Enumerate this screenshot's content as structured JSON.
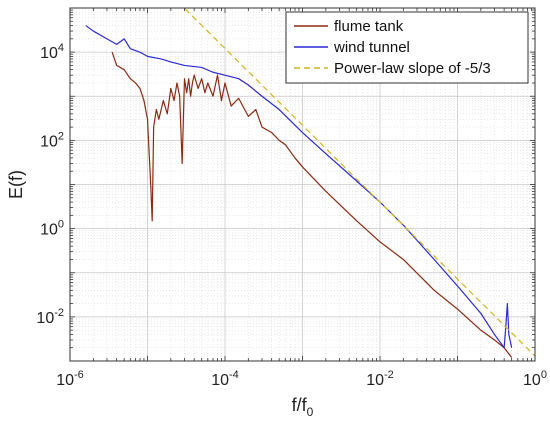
{
  "chart_data": {
    "type": "line",
    "xlabel": "f/f",
    "xlabel_sub": "0",
    "ylabel": "E(f)",
    "xscale": "log",
    "yscale": "log",
    "xlim": [
      1e-06,
      1
    ],
    "ylim": [
      0.001,
      100000
    ],
    "grid": true,
    "legend_position": "top-right",
    "x_ticks": [
      {
        "value": 1e-06,
        "base": "10",
        "exp": "-6"
      },
      {
        "value": 0.0001,
        "base": "10",
        "exp": "-4"
      },
      {
        "value": 0.01,
        "base": "10",
        "exp": "-2"
      },
      {
        "value": 1,
        "base": "10",
        "exp": "0"
      }
    ],
    "y_ticks": [
      {
        "value": 0.01,
        "base": "10",
        "exp": "-2"
      },
      {
        "value": 1,
        "base": "10",
        "exp": "0"
      },
      {
        "value": 100,
        "base": "10",
        "exp": "2"
      },
      {
        "value": 10000,
        "base": "10",
        "exp": "4"
      }
    ],
    "series": [
      {
        "name": "flume tank",
        "color": "#8b2a12",
        "style": "solid",
        "x": [
          3.5e-06,
          4e-06,
          5e-06,
          6e-06,
          7e-06,
          8e-06,
          9e-06,
          1e-05,
          1.1e-05,
          1.15e-05,
          1.2e-05,
          1.3e-05,
          1.4e-05,
          1.6e-05,
          1.8e-05,
          2e-05,
          2.2e-05,
          2.4e-05,
          2.6e-05,
          2.8e-05,
          3e-05,
          3.2e-05,
          3.4e-05,
          3.6e-05,
          3.8e-05,
          4e-05,
          4.5e-05,
          5e-05,
          5.5e-05,
          6e-05,
          7e-05,
          8e-05,
          9e-05,
          0.0001,
          0.00012,
          0.00015,
          0.0002,
          0.00025,
          0.0003,
          0.0004,
          0.0005,
          0.0006,
          0.0008,
          0.001,
          0.002,
          0.005,
          0.01,
          0.02,
          0.05,
          0.1,
          0.2,
          0.3,
          0.4,
          0.5
        ],
        "y": [
          10000,
          5000,
          4000,
          2500,
          2000,
          1500,
          800,
          300,
          10,
          1.5,
          200,
          500,
          300,
          800,
          400,
          1500,
          800,
          2000,
          1000,
          30,
          2500,
          1200,
          2500,
          1000,
          2000,
          3000,
          1500,
          2500,
          1200,
          2000,
          1000,
          3000,
          800,
          2000,
          600,
          900,
          350,
          500,
          200,
          150,
          100,
          80,
          40,
          25,
          7,
          1.5,
          0.5,
          0.2,
          0.04,
          0.015,
          0.005,
          0.003,
          0.002,
          0.0012
        ]
      },
      {
        "name": "wind tunnel",
        "color": "#2a2ad4",
        "style": "solid",
        "x": [
          1.6e-06,
          2e-06,
          3e-06,
          4e-06,
          5e-06,
          6e-06,
          8e-06,
          1e-05,
          1.5e-05,
          2e-05,
          3e-05,
          5e-05,
          7e-05,
          0.0001,
          0.00015,
          0.0002,
          0.0003,
          0.0005,
          0.001,
          0.002,
          0.005,
          0.01,
          0.02,
          0.05,
          0.1,
          0.2,
          0.3,
          0.4,
          0.42,
          0.44,
          0.46,
          0.5
        ],
        "y": [
          40000,
          30000,
          20000,
          15000,
          20000,
          12000,
          10000,
          8000,
          7000,
          6000,
          5000,
          4500,
          3500,
          3000,
          2500,
          1800,
          1000,
          500,
          150,
          50,
          12,
          4,
          1.2,
          0.2,
          0.05,
          0.012,
          0.004,
          0.002,
          0.006,
          0.02,
          0.004,
          0.002
        ]
      },
      {
        "name": "Power-law slope of -5/3",
        "color": "#d4b41e",
        "style": "dashed",
        "x": [
          2e-05,
          1
        ],
        "y": [
          200000,
          0.0013
        ]
      }
    ]
  }
}
